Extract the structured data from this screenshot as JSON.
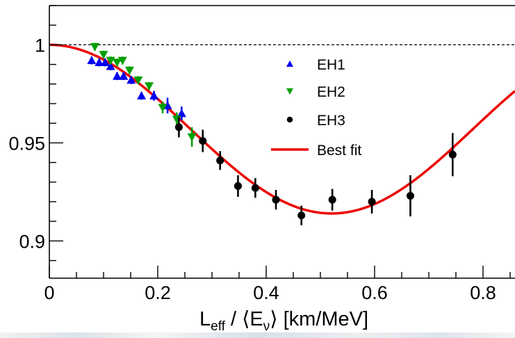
{
  "chart_data": {
    "type": "scatter",
    "title": "",
    "xlabel": {
      "main": "L",
      "sub": "eff",
      "mid": " / ⟨E",
      "sub2": "ν",
      "end": "⟩ [km/MeV]"
    },
    "ylabel": "",
    "xlim": [
      0,
      0.859
    ],
    "ylim": [
      0.881,
      1.02
    ],
    "x_ticks": [
      {
        "value": 0,
        "label": "0"
      },
      {
        "value": 0.2,
        "label": "0.2"
      },
      {
        "value": 0.4,
        "label": "0.4"
      },
      {
        "value": 0.6,
        "label": "0.6"
      },
      {
        "value": 0.8,
        "label": "0.8"
      }
    ],
    "x_minor_step": 0.05,
    "y_ticks": [
      {
        "value": 1.0,
        "label": "1"
      },
      {
        "value": 0.95,
        "label": "0.95"
      },
      {
        "value": 0.9,
        "label": "0.9"
      }
    ],
    "y_minor_step": 0.01,
    "grid": false,
    "reference_line": {
      "y": 1.0,
      "style": "dashed",
      "color": "#000000"
    },
    "legend_position": "top-center",
    "series": [
      {
        "name": "EH1",
        "marker": "triangle-up",
        "color": "#0000ee",
        "points": [
          {
            "x": 0.078,
            "y": 0.992,
            "err": 0.002
          },
          {
            "x": 0.092,
            "y": 0.991,
            "err": 0.002
          },
          {
            "x": 0.103,
            "y": 0.991,
            "err": 0.002
          },
          {
            "x": 0.113,
            "y": 0.989,
            "err": 0.002
          },
          {
            "x": 0.125,
            "y": 0.984,
            "err": 0.002
          },
          {
            "x": 0.137,
            "y": 0.984,
            "err": 0.002
          },
          {
            "x": 0.151,
            "y": 0.982,
            "err": 0.002
          },
          {
            "x": 0.17,
            "y": 0.974,
            "err": 0.002
          },
          {
            "x": 0.193,
            "y": 0.974,
            "err": 0.0025
          },
          {
            "x": 0.218,
            "y": 0.969,
            "err": 0.004
          },
          {
            "x": 0.244,
            "y": 0.965,
            "err": 0.0035
          }
        ]
      },
      {
        "name": "EH2",
        "marker": "triangle-down",
        "color": "#00a000",
        "points": [
          {
            "x": 0.084,
            "y": 0.999,
            "err": 0.002
          },
          {
            "x": 0.1,
            "y": 0.995,
            "err": 0.002
          },
          {
            "x": 0.113,
            "y": 0.992,
            "err": 0.002
          },
          {
            "x": 0.125,
            "y": 0.991,
            "err": 0.002
          },
          {
            "x": 0.135,
            "y": 0.992,
            "err": 0.002
          },
          {
            "x": 0.148,
            "y": 0.987,
            "err": 0.002
          },
          {
            "x": 0.164,
            "y": 0.982,
            "err": 0.002
          },
          {
            "x": 0.184,
            "y": 0.979,
            "err": 0.002
          },
          {
            "x": 0.209,
            "y": 0.968,
            "err": 0.003
          },
          {
            "x": 0.235,
            "y": 0.962,
            "err": 0.0035
          },
          {
            "x": 0.263,
            "y": 0.953,
            "err": 0.005
          }
        ]
      },
      {
        "name": "EH3",
        "marker": "circle",
        "color": "#000000",
        "points": [
          {
            "x": 0.239,
            "y": 0.958,
            "err": 0.0052
          },
          {
            "x": 0.283,
            "y": 0.951,
            "err": 0.0057
          },
          {
            "x": 0.315,
            "y": 0.941,
            "err": 0.0048
          },
          {
            "x": 0.348,
            "y": 0.928,
            "err": 0.0055
          },
          {
            "x": 0.38,
            "y": 0.927,
            "err": 0.005
          },
          {
            "x": 0.418,
            "y": 0.921,
            "err": 0.005
          },
          {
            "x": 0.465,
            "y": 0.913,
            "err": 0.005
          },
          {
            "x": 0.522,
            "y": 0.921,
            "err": 0.0055
          },
          {
            "x": 0.595,
            "y": 0.92,
            "err": 0.006
          },
          {
            "x": 0.666,
            "y": 0.923,
            "err": 0.0105
          },
          {
            "x": 0.744,
            "y": 0.944,
            "err": 0.011
          }
        ]
      }
    ],
    "fit": {
      "name": "Best fit",
      "color": "#ee0000",
      "type": "line",
      "model": "1 - A*sin^2(k*x)",
      "A": 0.086,
      "k": 3.016,
      "minimum": {
        "x": 0.52,
        "y": 0.914
      }
    },
    "legend": [
      {
        "label": "EH1",
        "marker": "triangle-up",
        "color": "#0000ee"
      },
      {
        "label": "EH2",
        "marker": "triangle-down",
        "color": "#00a000"
      },
      {
        "label": "EH3",
        "marker": "circle",
        "color": "#000000"
      },
      {
        "label": "Best fit",
        "marker": "line",
        "color": "#ee0000"
      }
    ]
  }
}
